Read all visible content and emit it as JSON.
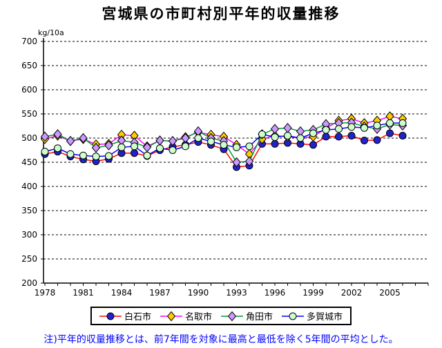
{
  "chart_data": {
    "type": "line",
    "title": "宮城県の市町村別平年的収量推移",
    "ylabel": "kg/10a",
    "xlabel": "",
    "ylim": [
      200,
      700
    ],
    "ytick_step": 50,
    "yticks": [
      200,
      250,
      300,
      350,
      400,
      450,
      500,
      550,
      600,
      650,
      700
    ],
    "xticks": [
      1978,
      1981,
      1984,
      1987,
      1990,
      1993,
      1996,
      1999,
      2002,
      2005
    ],
    "minor_xtick_range": [
      1978,
      2008
    ],
    "grid": "horizontal-dashed",
    "legend_position": "bottom",
    "x": [
      1978,
      1979,
      1980,
      1981,
      1982,
      1983,
      1984,
      1985,
      1986,
      1987,
      1988,
      1989,
      1990,
      1991,
      1992,
      1993,
      1994,
      1995,
      1996,
      1997,
      1998,
      1999,
      2000,
      2001,
      2002,
      2003,
      2004,
      2005,
      2006
    ],
    "series": [
      {
        "name": "白石市",
        "line_color": "#ff0000",
        "marker": "circle",
        "marker_color": "#2222cc",
        "values": [
          467,
          472,
          462,
          456,
          452,
          457,
          469,
          469,
          463,
          475,
          482,
          486,
          492,
          486,
          477,
          440,
          443,
          488,
          488,
          490,
          488,
          486,
          503,
          503,
          505,
          495,
          496,
          510,
          505
        ]
      },
      {
        "name": "名取市",
        "line_color": "#ff00ff",
        "marker": "diamond",
        "marker_color": "#ffcc00",
        "values": [
          498,
          505,
          494,
          498,
          487,
          488,
          507,
          505,
          483,
          495,
          494,
          502,
          512,
          507,
          503,
          486,
          467,
          498,
          505,
          503,
          500,
          503,
          520,
          536,
          540,
          531,
          536,
          545,
          540
        ]
      },
      {
        "name": "角田市",
        "line_color": "#009933",
        "marker": "diamond",
        "marker_color": "#cc99ff",
        "values": [
          503,
          508,
          494,
          500,
          480,
          485,
          495,
          491,
          481,
          495,
          494,
          500,
          514,
          500,
          494,
          450,
          452,
          508,
          519,
          521,
          514,
          517,
          529,
          531,
          532,
          524,
          519,
          528,
          526
        ]
      },
      {
        "name": "多賀城市",
        "line_color": "#0000ff",
        "marker": "circle",
        "marker_color": "#ccffcc",
        "values": [
          472,
          479,
          467,
          464,
          462,
          463,
          481,
          483,
          464,
          479,
          475,
          483,
          500,
          493,
          486,
          481,
          483,
          508,
          502,
          505,
          500,
          510,
          517,
          519,
          523,
          521,
          526,
          531,
          531
        ]
      }
    ],
    "note": "注)平年的収量推移とは、前7年間を対象に最高と最低を除く5年間の平均とした。"
  }
}
